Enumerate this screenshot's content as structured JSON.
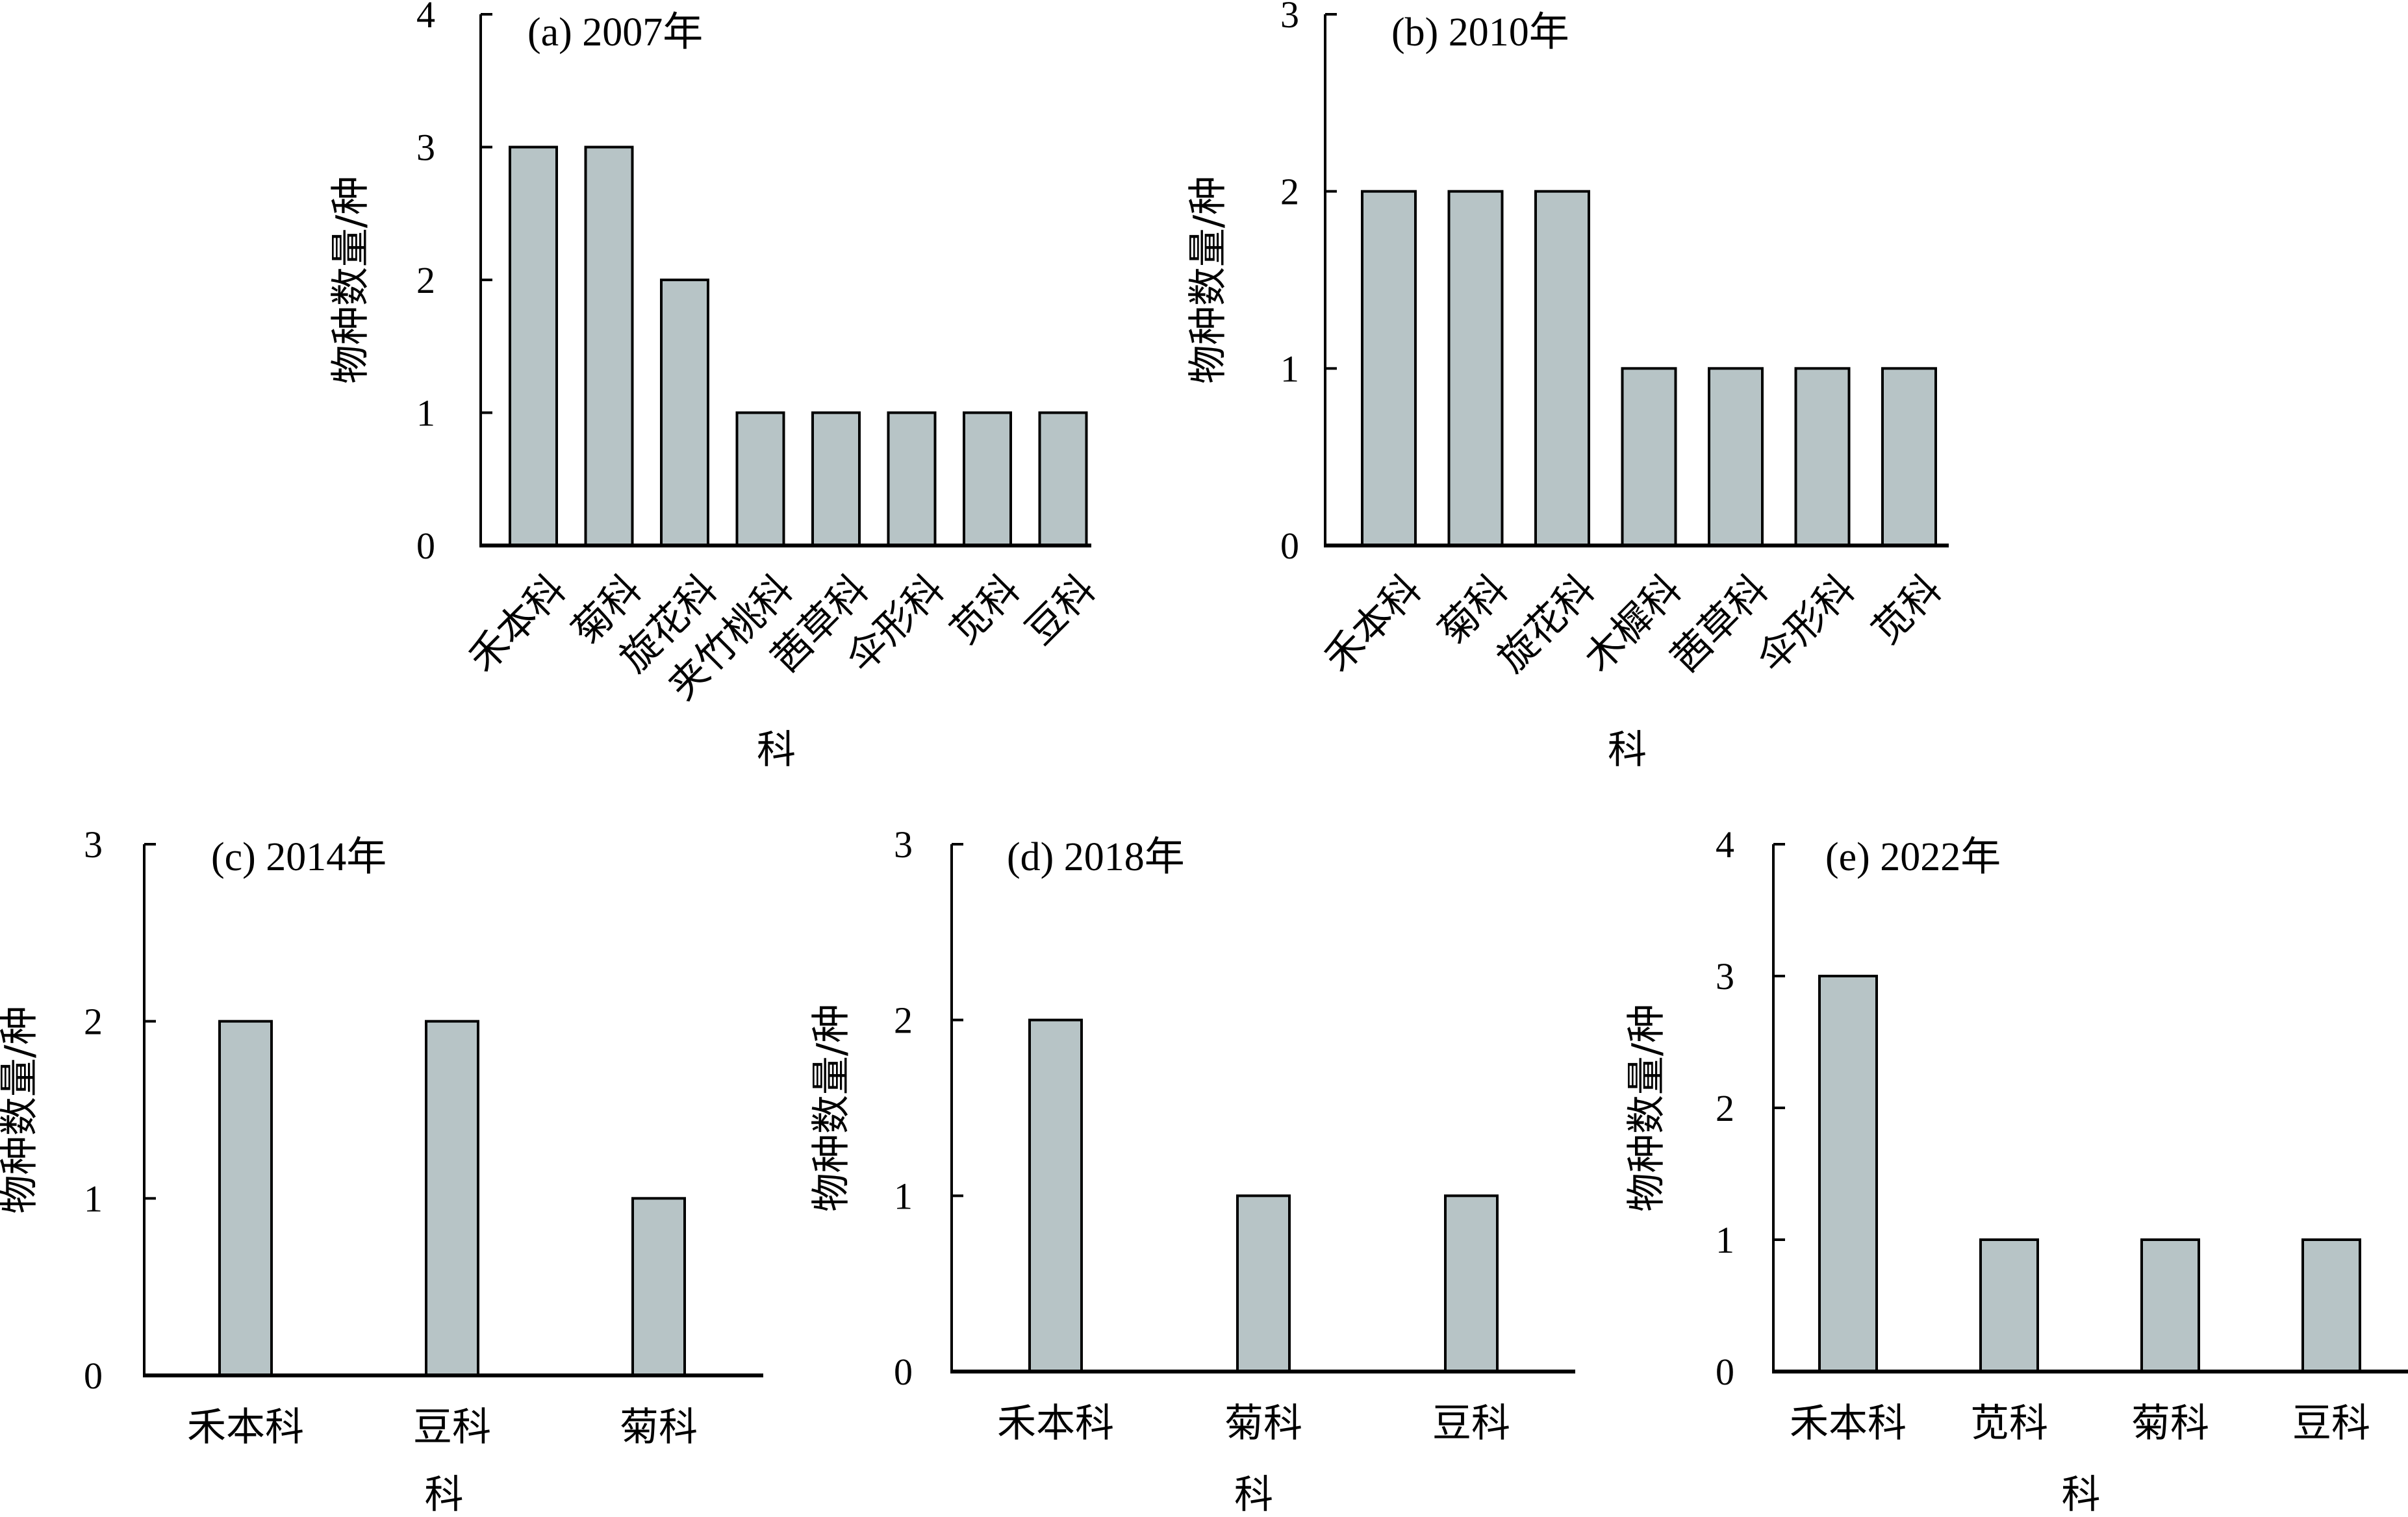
{
  "figure": {
    "bar_fill": "#b7c4c6",
    "bar_stroke": "#000000",
    "axis_color": "#000000"
  },
  "chart_data": [
    {
      "id": "a",
      "type": "bar",
      "title": "(a) 2007年",
      "xlabel": "科",
      "ylabel": "物种数量/种",
      "ylim": [
        0,
        4
      ],
      "yticks": [
        0,
        1,
        2,
        3,
        4
      ],
      "label_rotation": "rotated-45",
      "categories": [
        "禾本科",
        "菊科",
        "旋花科",
        "夹竹桃科",
        "茜草科",
        "伞形科",
        "苋科",
        "豆科"
      ],
      "values": [
        3,
        3,
        2,
        1,
        1,
        1,
        1,
        1
      ],
      "grid": false
    },
    {
      "id": "b",
      "type": "bar",
      "title": "(b) 2010年",
      "xlabel": "科",
      "ylabel": "物种数量/种",
      "ylim": [
        0,
        3
      ],
      "yticks": [
        0,
        1,
        2,
        3
      ],
      "label_rotation": "rotated-45",
      "categories": [
        "禾本科",
        "菊科",
        "旋花科",
        "木樨科",
        "茜草科",
        "伞形科",
        "苋科"
      ],
      "values": [
        2,
        2,
        2,
        1,
        1,
        1,
        1
      ],
      "grid": false
    },
    {
      "id": "c",
      "type": "bar",
      "title": "(c) 2014年",
      "xlabel": "科",
      "ylabel": "物种数量/种",
      "ylim": [
        0,
        3
      ],
      "yticks": [
        0,
        1,
        2,
        3
      ],
      "label_rotation": "horizontal",
      "categories": [
        "禾本科",
        "豆科",
        "菊科"
      ],
      "values": [
        2,
        2,
        1
      ],
      "grid": false
    },
    {
      "id": "d",
      "type": "bar",
      "title": "(d) 2018年",
      "xlabel": "科",
      "ylabel": "物种数量/种",
      "ylim": [
        0,
        3
      ],
      "yticks": [
        0,
        1,
        2,
        3
      ],
      "label_rotation": "horizontal",
      "categories": [
        "禾本科",
        "菊科",
        "豆科"
      ],
      "values": [
        2,
        1,
        1
      ],
      "grid": false
    },
    {
      "id": "e",
      "type": "bar",
      "title": "(e) 2022年",
      "xlabel": "科",
      "ylabel": "物种数量/种",
      "ylim": [
        0,
        4
      ],
      "yticks": [
        0,
        1,
        2,
        3,
        4
      ],
      "label_rotation": "horizontal",
      "categories": [
        "禾本科",
        "苋科",
        "菊科",
        "豆科"
      ],
      "values": [
        3,
        1,
        1,
        1
      ],
      "grid": false
    }
  ]
}
